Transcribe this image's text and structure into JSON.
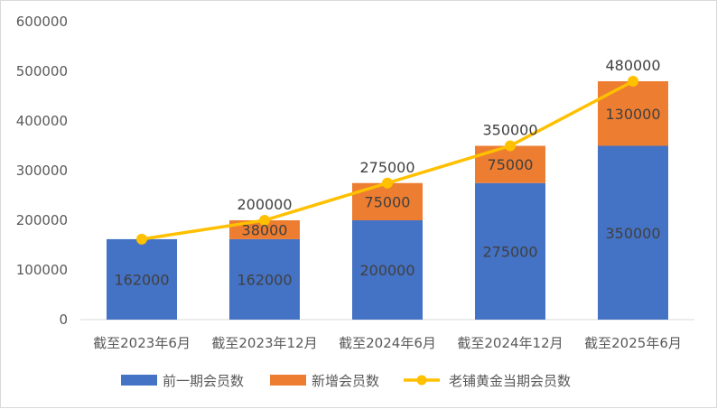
{
  "chart_data": {
    "type": "bar",
    "stacked": true,
    "categories": [
      "截至2023年6月",
      "截至2023年12月",
      "截至2024年6月",
      "截至2024年12月",
      "截至2025年6月"
    ],
    "series": [
      {
        "name": "前一期会员数",
        "kind": "bar",
        "color": "#4472C4",
        "values": [
          162000,
          162000,
          200000,
          275000,
          350000
        ],
        "labels": [
          "162000",
          "162000",
          "200000",
          "275000",
          "350000"
        ]
      },
      {
        "name": "新增会员数",
        "kind": "bar",
        "color": "#ED7D31",
        "values": [
          0,
          38000,
          75000,
          75000,
          130000
        ],
        "labels": [
          "",
          "38000",
          "75000",
          "75000",
          "130000"
        ]
      },
      {
        "name": "老铺黄金当期会员数",
        "kind": "line",
        "color": "#FFC000",
        "values": [
          162000,
          200000,
          275000,
          350000,
          480000
        ],
        "labels": [
          "",
          "200000",
          "275000",
          "350000",
          "480000"
        ]
      }
    ],
    "y_ticks": [
      "0",
      "100000",
      "200000",
      "300000",
      "400000",
      "500000",
      "600000"
    ],
    "ylim": [
      0,
      600000
    ],
    "grid": false,
    "legend_position": "bottom"
  }
}
